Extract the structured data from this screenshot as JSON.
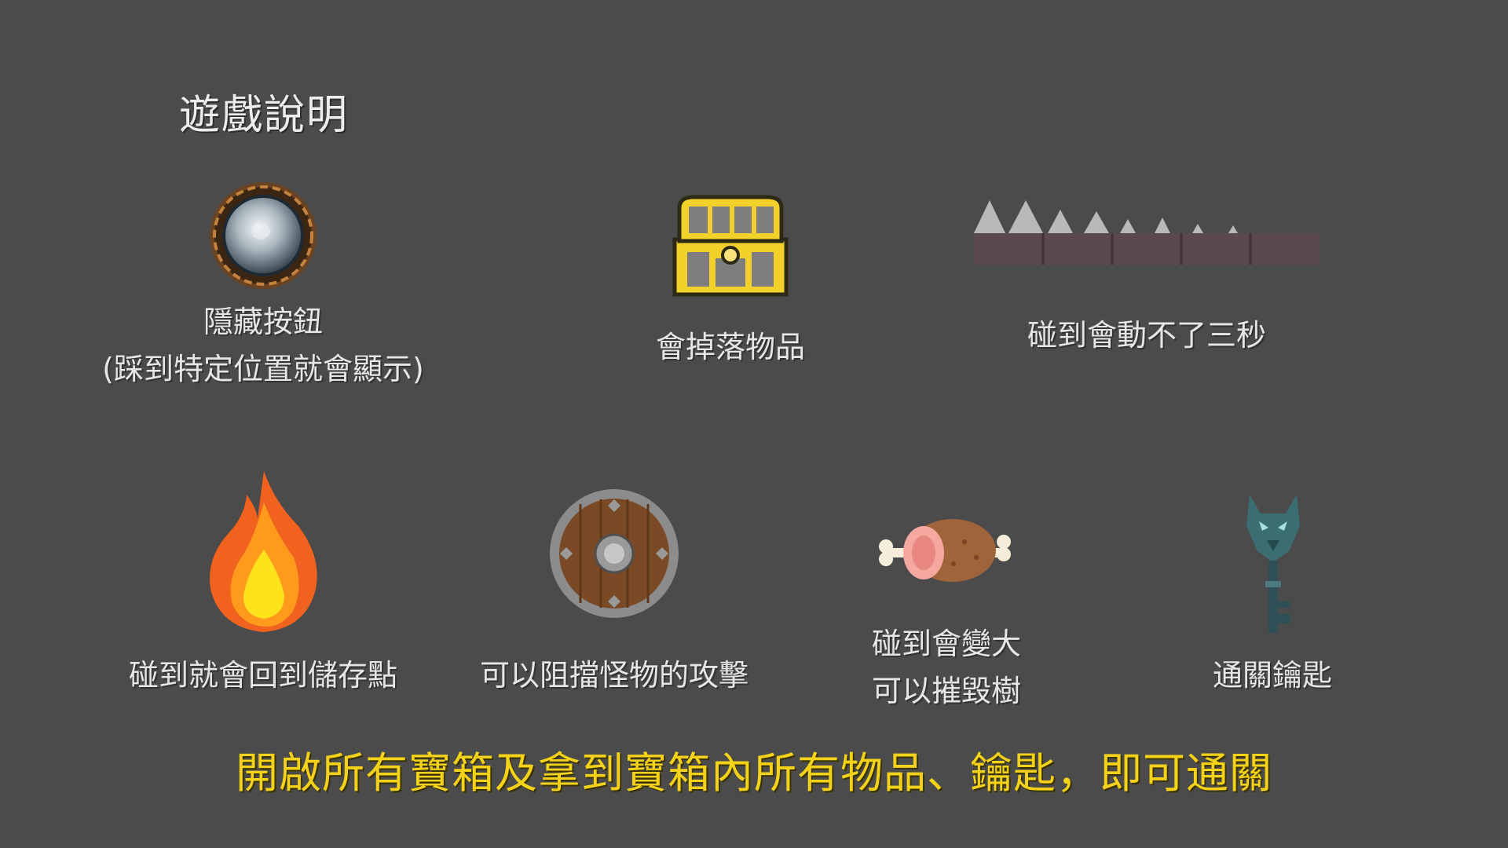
{
  "title": "遊戲說明",
  "items": [
    {
      "icon": "hidden-button-icon",
      "line1": "隱藏按鈕",
      "line2": "(踩到特定位置就會顯示)"
    },
    {
      "icon": "treasure-chest-icon",
      "line1": "會掉落物品"
    },
    {
      "icon": "spike-trap-icon",
      "line1": "碰到會動不了三秒"
    },
    {
      "icon": "fire-icon",
      "line1": "碰到就會回到儲存點"
    },
    {
      "icon": "shield-icon",
      "line1": "可以阻擋怪物的攻擊"
    },
    {
      "icon": "meat-icon",
      "line1": "碰到會變大",
      "line2": "可以摧毀樹"
    },
    {
      "icon": "wolf-key-icon",
      "line1": "通關鑰匙"
    }
  ],
  "footer": "開啟所有寶箱及拿到寶箱內所有物品、鑰匙，即可通關",
  "colors": {
    "background": "#4b4b4b",
    "text": "#e6e6e6",
    "highlight": "#f5d21a"
  }
}
